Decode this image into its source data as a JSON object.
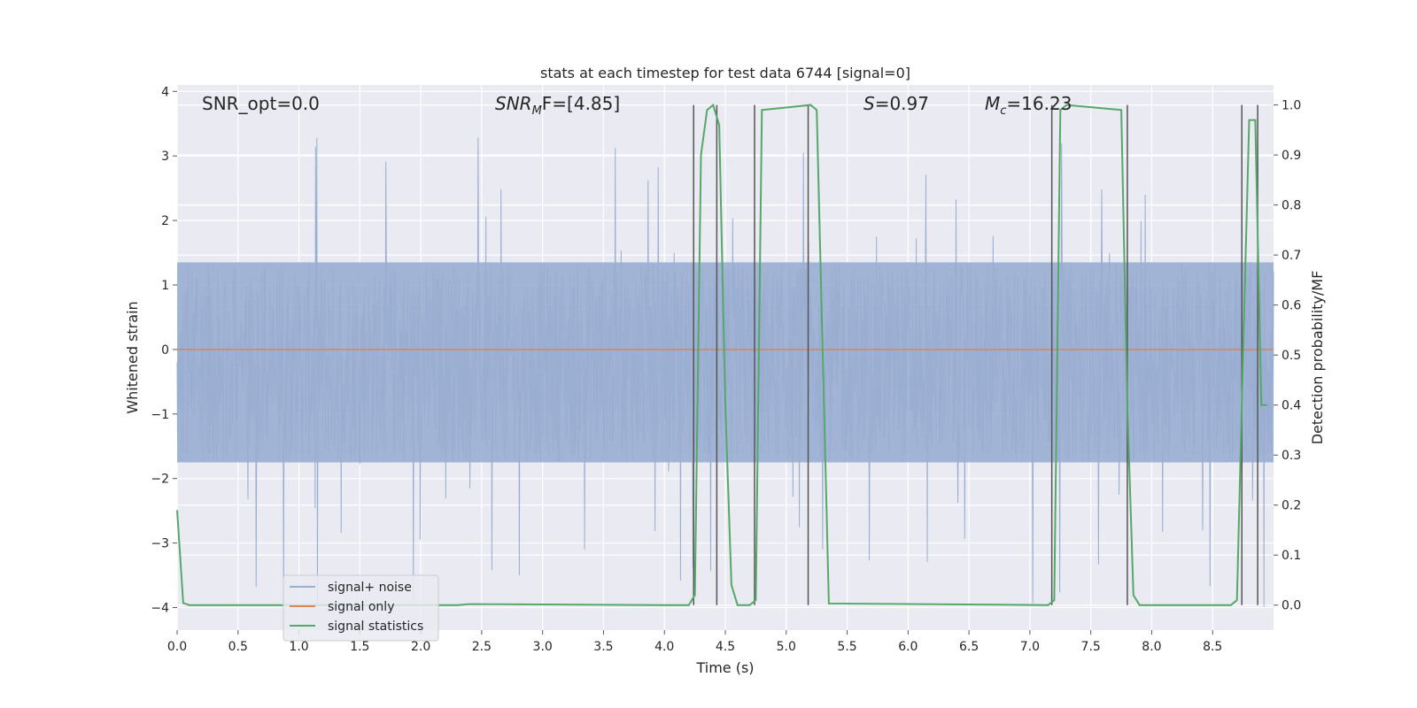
{
  "chart_data": {
    "type": "line",
    "title": "stats at each timestep for test data 6744 [signal=0]",
    "xlabel": "Time (s)",
    "ylabel_left": "Whitened strain",
    "ylabel_right": "Detection probability/MF",
    "xlim": [
      0.0,
      9.0
    ],
    "ylim_left": [
      -4.35,
      4.1
    ],
    "ylim_right": [
      -0.05,
      1.04
    ],
    "x_ticks": [
      "0.0",
      "0.5",
      "1.0",
      "1.5",
      "2.0",
      "2.5",
      "3.0",
      "3.5",
      "4.0",
      "4.5",
      "5.0",
      "5.5",
      "6.0",
      "6.5",
      "7.0",
      "7.5",
      "8.0",
      "8.5"
    ],
    "y_ticks_left": [
      "4",
      "3",
      "2",
      "1",
      "0",
      "−1",
      "−2",
      "−3",
      "−4"
    ],
    "y_ticks_right": [
      "1.0",
      "0.9",
      "0.8",
      "0.7",
      "0.6",
      "0.5",
      "0.4",
      "0.3",
      "0.2",
      "0.1",
      "0.0"
    ],
    "grid": true,
    "legend_position": "lower-left",
    "annotations": {
      "snr_opt": "SNR_opt=0.0",
      "snr_mf_name": "SNR",
      "snr_mf_sub": "M",
      "snr_mf_rest": "F=[4.85]",
      "s_name": "S",
      "s_rest": "=0.97",
      "mc_name": "M",
      "mc_sub": "c",
      "mc_rest": "=16.23"
    },
    "series": [
      {
        "name": "signal+ noise",
        "color": "#9aaed2",
        "description_kind": "noise",
        "envelope_upper": 1.35,
        "envelope_lower": -1.75,
        "peak_max": 3.35,
        "peak_min": -4.05
      },
      {
        "name": "signal only",
        "color": "#dd8452",
        "x": [
          0.0,
          9.0
        ],
        "y": [
          0.0,
          0.0
        ]
      },
      {
        "name": "signal statistics",
        "color": "#55a868",
        "axis": "right",
        "x": [
          0.0,
          0.05,
          0.1,
          0.15,
          2.3,
          2.4,
          4.0,
          4.2,
          4.25,
          4.3,
          4.35,
          4.4,
          4.45,
          4.5,
          4.55,
          4.6,
          4.7,
          4.75,
          4.8,
          5.2,
          5.25,
          5.3,
          5.35,
          7.15,
          7.2,
          7.25,
          7.3,
          7.75,
          7.8,
          7.85,
          7.9,
          8.65,
          8.7,
          8.75,
          8.8,
          8.85,
          8.9,
          8.95
        ],
        "y": [
          0.19,
          0.004,
          0.0,
          0.0,
          0.0,
          0.002,
          0.0,
          0.0,
          0.02,
          0.9,
          0.99,
          1.0,
          0.96,
          0.4,
          0.04,
          0.0,
          0.0,
          0.01,
          0.99,
          1.0,
          0.99,
          0.5,
          0.003,
          0.0,
          0.01,
          0.99,
          1.0,
          0.99,
          0.4,
          0.02,
          0.0,
          0.0,
          0.01,
          0.5,
          0.97,
          0.97,
          0.4,
          0.4
        ]
      }
    ],
    "vertical_markers_x": [
      4.24,
      4.43,
      4.74,
      5.18,
      7.18,
      7.8,
      8.74,
      8.87
    ]
  }
}
